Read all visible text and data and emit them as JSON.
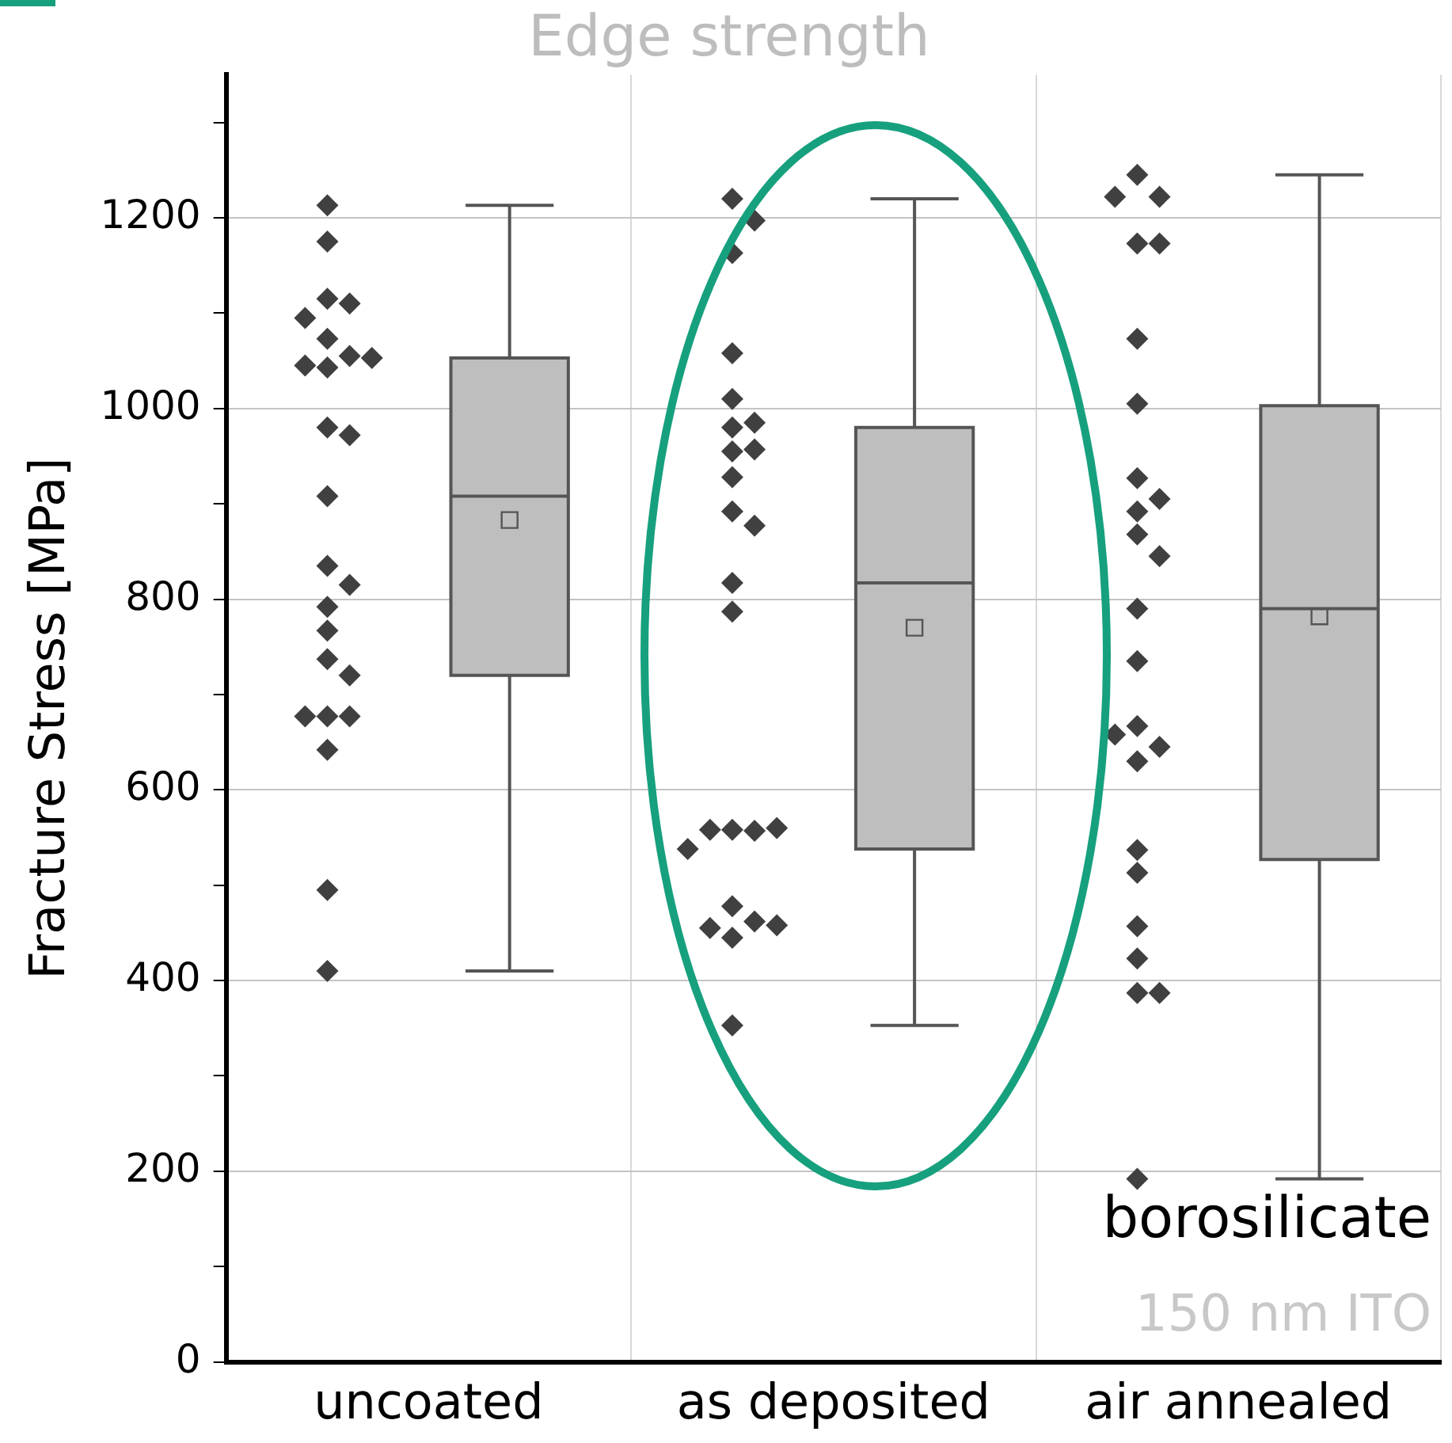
{
  "chart_data": {
    "type": "box",
    "title": "Edge strength",
    "ylabel": "Fracture Stress [MPa]",
    "categories": [
      "uncoated",
      "as deposited",
      "air annealed"
    ],
    "ylim": [
      0,
      1350
    ],
    "yticks": [
      0,
      {
        "value": 100,
        "label": null
      },
      200,
      {
        "value": 300,
        "label": null
      },
      400,
      {
        "value": 500,
        "label": null
      },
      600,
      {
        "value": 700,
        "label": null
      },
      800,
      {
        "value": 900,
        "label": null
      },
      1000,
      {
        "value": 1100,
        "label": null
      },
      1200,
      {
        "value": 1300,
        "label": null
      }
    ],
    "grid": true,
    "legend": false,
    "series": [
      {
        "type": "scatter",
        "color": "#404040",
        "marker": "diamond",
        "x": [
          "uncoated",
          "uncoated",
          "uncoated",
          "uncoated",
          "uncoated",
          "uncoated",
          "uncoated",
          "uncoated",
          "uncoated",
          "uncoated",
          "uncoated",
          "uncoated",
          "uncoated",
          "uncoated",
          "uncoated",
          "uncoated",
          "uncoated",
          "uncoated",
          "uncoated",
          "uncoated",
          "uncoated",
          "uncoated",
          "uncoated",
          "uncoated",
          "uncoated"
        ],
        "values": [
          1213,
          1175,
          1115,
          1110,
          1095,
          1073,
          1055,
          1043,
          1045,
          1053,
          980,
          972,
          908,
          835,
          815,
          792,
          767,
          737,
          720,
          677,
          677,
          677,
          642,
          495,
          410
        ]
      },
      {
        "type": "scatter",
        "color": "#404040",
        "marker": "diamond",
        "x": [
          "as deposited",
          "as deposited",
          "as deposited",
          "as deposited",
          "as deposited",
          "as deposited",
          "as deposited",
          "as deposited",
          "as deposited",
          "as deposited",
          "as deposited",
          "as deposited",
          "as deposited",
          "as deposited",
          "as deposited",
          "as deposited",
          "as deposited",
          "as deposited",
          "as deposited",
          "as deposited",
          "as deposited",
          "as deposited",
          "as deposited",
          "as deposited",
          "as deposited"
        ],
        "values": [
          1220,
          1197,
          1163,
          1058,
          1010,
          980,
          985,
          957,
          955,
          928,
          892,
          877,
          817,
          787,
          558,
          557,
          558,
          560,
          538,
          478,
          462,
          455,
          458,
          445,
          353
        ]
      },
      {
        "type": "scatter",
        "color": "#404040",
        "marker": "diamond",
        "x": [
          "air annealed",
          "air annealed",
          "air annealed",
          "air annealed",
          "air annealed",
          "air annealed",
          "air annealed",
          "air annealed",
          "air annealed",
          "air annealed",
          "air annealed",
          "air annealed",
          "air annealed",
          "air annealed",
          "air annealed",
          "air annealed",
          "air annealed",
          "air annealed",
          "air annealed",
          "air annealed",
          "air annealed",
          "air annealed",
          "air annealed",
          "air annealed",
          "air annealed"
        ],
        "values": [
          1245,
          1222,
          1222,
          1173,
          1173,
          1073,
          1005,
          927,
          905,
          892,
          868,
          845,
          790,
          735,
          667,
          645,
          658,
          630,
          537,
          513,
          457,
          423,
          387,
          387,
          192
        ]
      },
      {
        "color": "#bebebe",
        "boxes": [
          {
            "low": 410,
            "q1": 720,
            "median": 908,
            "q3": 1053,
            "high": 1213,
            "mean": 883
          },
          {
            "low": 353,
            "q1": 538,
            "median": 817,
            "q3": 980,
            "high": 1220,
            "mean": 770
          },
          {
            "low": 192,
            "q1": 527,
            "median": 790,
            "q3": 1003,
            "high": 1245,
            "mean": 782
          }
        ]
      }
    ],
    "annotations": [
      "borosilicate",
      "150 nm ITO"
    ]
  }
}
